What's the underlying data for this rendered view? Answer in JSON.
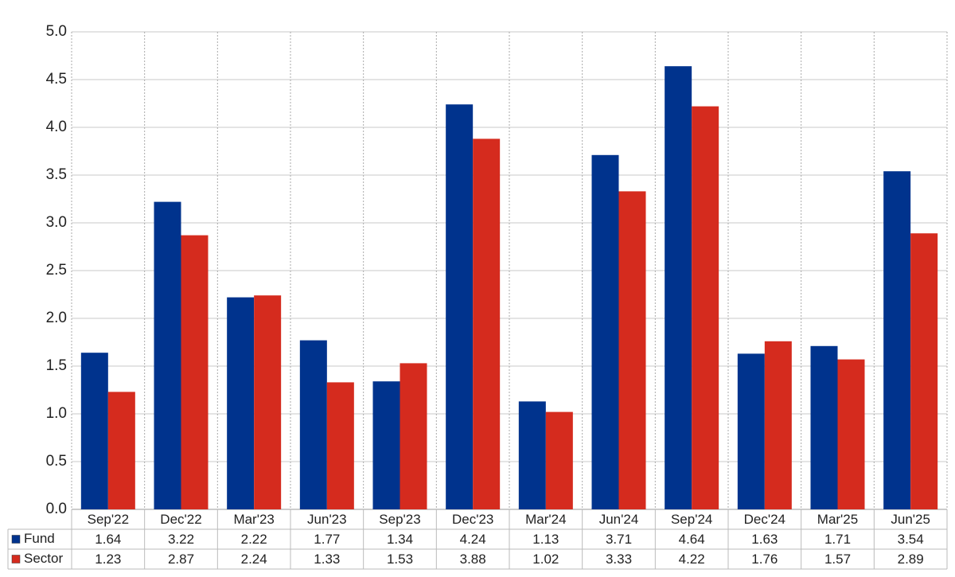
{
  "chart_data": {
    "type": "bar",
    "categories": [
      "Sep'22",
      "Dec'22",
      "Mar'23",
      "Jun'23",
      "Sep'23",
      "Dec'23",
      "Mar'24",
      "Jun'24",
      "Sep'24",
      "Dec'24",
      "Mar'25",
      "Jun'25"
    ],
    "series": [
      {
        "name": "Fund",
        "color": "#00338d",
        "values": [
          1.64,
          3.22,
          2.22,
          1.77,
          1.34,
          4.24,
          1.13,
          3.71,
          4.64,
          1.63,
          1.71,
          3.54
        ]
      },
      {
        "name": "Sector",
        "color": "#d52b1e",
        "values": [
          1.23,
          2.87,
          2.24,
          1.33,
          1.53,
          3.88,
          1.02,
          3.33,
          4.22,
          1.76,
          1.57,
          2.89
        ]
      }
    ],
    "ylim": [
      0,
      5
    ],
    "yticks": [
      {
        "value": 0,
        "label": "0.0"
      },
      0.5,
      {
        "value": 1,
        "label": "1.0"
      },
      1.5,
      {
        "value": 2,
        "label": "2.0"
      },
      2.5,
      {
        "value": 3,
        "label": "3.0"
      },
      3.5,
      {
        "value": 4,
        "label": "4.0"
      },
      4.5,
      {
        "value": 5,
        "label": "5.0"
      }
    ],
    "grid": true
  }
}
